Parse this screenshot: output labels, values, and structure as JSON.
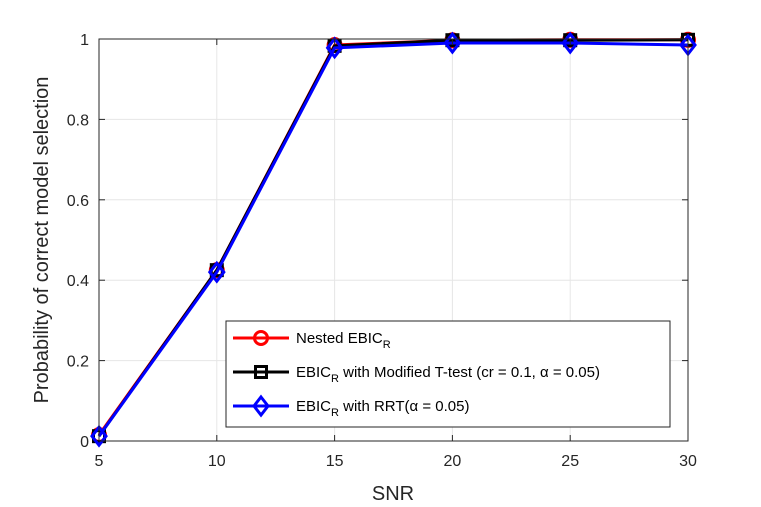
{
  "chart_data": {
    "type": "line",
    "xlabel": "SNR",
    "ylabel": "Probability of correct model selection",
    "xlim": [
      5,
      30
    ],
    "ylim": [
      0,
      1
    ],
    "xticks": [
      5,
      10,
      15,
      20,
      25,
      30
    ],
    "yticks": [
      0,
      0.2,
      0.4,
      0.6,
      0.8,
      1
    ],
    "xtick_labels": [
      "5",
      "10",
      "15",
      "20",
      "25",
      "30"
    ],
    "ytick_labels": [
      "0",
      "0.2",
      "0.4",
      "0.6",
      "0.8",
      "1"
    ],
    "grid": true,
    "legend_position": "bottom-right",
    "x": [
      5,
      10,
      15,
      20,
      25,
      30
    ],
    "series": [
      {
        "name": "Nested EBIC_R",
        "legend_parts": {
          "pre": "Nested EBIC",
          "sub": "R",
          "post": ""
        },
        "color": "#ff0000",
        "marker": "circle",
        "values": [
          0.015,
          0.425,
          0.985,
          0.997,
          0.998,
          0.998
        ]
      },
      {
        "name": "EBIC_R with Modified T-test (cr = 0.1, α = 0.05)",
        "legend_parts": {
          "pre": "EBIC",
          "sub": "R",
          "post": " with Modified T-test (cr = 0.1, α = 0.05)"
        },
        "color": "#000000",
        "marker": "square",
        "values": [
          0.012,
          0.425,
          0.983,
          0.997,
          0.997,
          0.998
        ]
      },
      {
        "name": "EBIC_R with RRT(α = 0.05)",
        "legend_parts": {
          "pre": "EBIC",
          "sub": "R",
          "post": " with RRT(α = 0.05)"
        },
        "color": "#0000ff",
        "marker": "diamond",
        "values": [
          0.012,
          0.42,
          0.978,
          0.99,
          0.99,
          0.985
        ]
      }
    ]
  }
}
